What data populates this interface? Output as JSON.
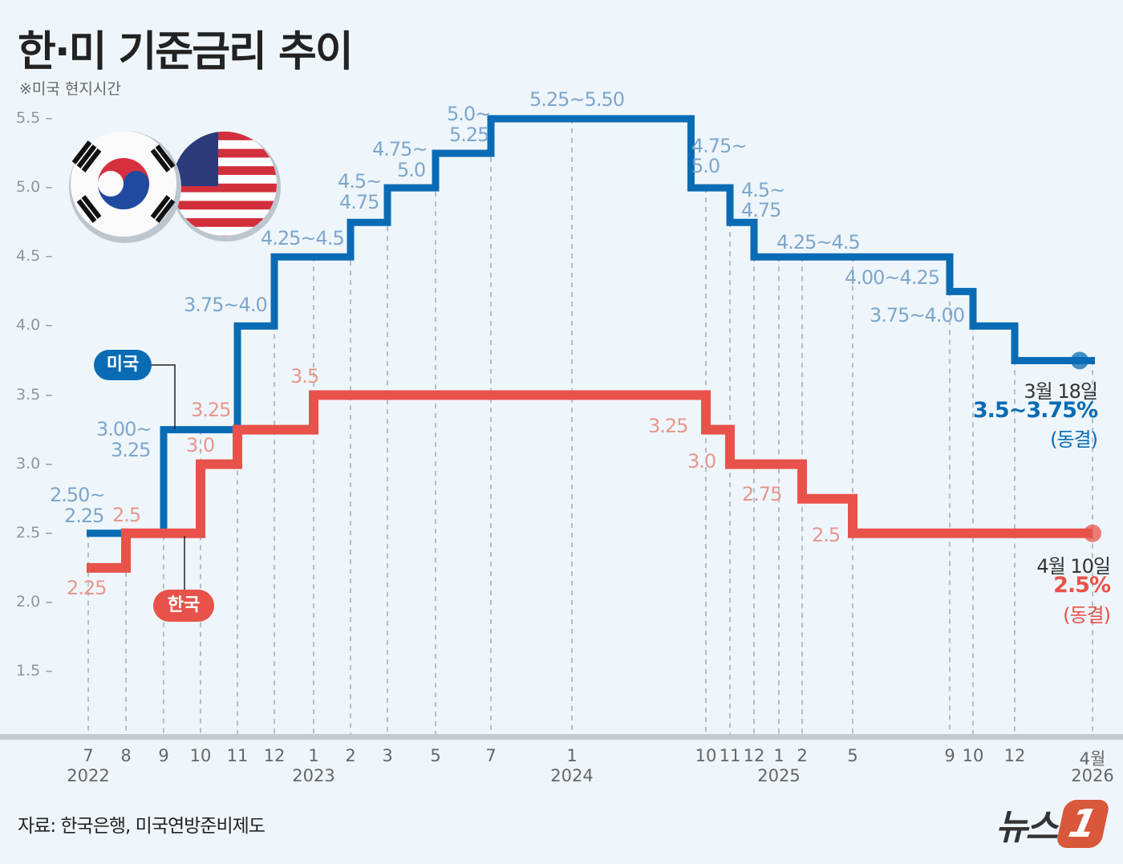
{
  "title": "한·미 기준금리 추이",
  "subtitle": "※미국 현지시간",
  "source": "자료: 한국은행, 미국연방준비제도",
  "logo": {
    "text": "뉴스",
    "mark": "1"
  },
  "colors": {
    "us": "#0a6bb5",
    "us_label": "#7fa6cc",
    "kr": "#e8524a",
    "kr_label": "#e8968c",
    "background": "#eef6fb"
  },
  "icons": [
    "korea-flag-icon",
    "us-flag-icon"
  ],
  "chart_data": {
    "type": "line",
    "step": true,
    "title": "한·미 기준금리 추이",
    "ylim": [
      1.5,
      5.5
    ],
    "yticks": [
      "5.5",
      "5.0",
      "4.5",
      "4.0",
      "3.5",
      "3.0",
      "2.5",
      "2.0",
      "1.5"
    ],
    "grid": "vertical dashed at rate change months",
    "xticks": [
      {
        "date": "2022-07",
        "label": "7",
        "year": "2022"
      },
      {
        "date": "2022-08",
        "label": "8"
      },
      {
        "date": "2022-09",
        "label": "9"
      },
      {
        "date": "2022-10",
        "label": "10"
      },
      {
        "date": "2022-11",
        "label": "11"
      },
      {
        "date": "2022-12",
        "label": "12"
      },
      {
        "date": "2023-01",
        "label": "1",
        "year": "2023"
      },
      {
        "date": "2023-02",
        "label": "2"
      },
      {
        "date": "2023-03",
        "label": "3"
      },
      {
        "date": "2023-05",
        "label": "5"
      },
      {
        "date": "2023-07",
        "label": "7"
      },
      {
        "date": "2024-01",
        "label": "1",
        "year": "2024"
      },
      {
        "date": "2024-10",
        "label": "10"
      },
      {
        "date": "2024-11",
        "label": "11"
      },
      {
        "date": "2024-12",
        "label": "12"
      },
      {
        "date": "2025-01",
        "label": "1",
        "year": "2025"
      },
      {
        "date": "2025-02",
        "label": "2"
      },
      {
        "date": "2025-05",
        "label": "5"
      },
      {
        "date": "2025-09",
        "label": "9"
      },
      {
        "date": "2025-10",
        "label": "10"
      },
      {
        "date": "2025-12",
        "label": "12"
      },
      {
        "date": "2026-04",
        "label": "4월",
        "year": "2026"
      }
    ],
    "series": [
      {
        "name": "미국",
        "color": "#0a6bb5",
        "steps": [
          [
            "2022-07",
            2.5
          ],
          [
            "2022-09",
            3.25
          ],
          [
            "2022-11",
            4.0
          ],
          [
            "2022-12",
            4.5
          ],
          [
            "2023-02",
            4.75
          ],
          [
            "2023-03",
            5.0
          ],
          [
            "2023-05",
            5.25
          ],
          [
            "2023-07",
            5.5
          ],
          [
            "2024-09",
            5.0
          ],
          [
            "2024-11",
            4.75
          ],
          [
            "2024-12",
            4.5
          ],
          [
            "2025-09",
            4.25
          ],
          [
            "2025-10",
            4.0
          ],
          [
            "2025-12",
            3.75
          ]
        ],
        "end": "2026-03-18",
        "labels": [
          "2.50~",
          "2.25",
          "3.00~",
          "3.25",
          "3.75~4.0",
          "4.25~4.5",
          "4.5~",
          "4.75",
          "4.75~",
          "5.0",
          "5.0~",
          "5.25",
          "5.25~5.50",
          "4.75~",
          "5.0",
          "4.5~",
          "4.75",
          "4.25~4.5",
          "4.00~4.25",
          "3.75~4.00"
        ],
        "end_note": {
          "date": "3월 18일",
          "value": "3.5~3.75%",
          "status": "(동결)"
        }
      },
      {
        "name": "한국",
        "color": "#e8524a",
        "steps": [
          [
            "2022-07",
            2.25
          ],
          [
            "2022-08",
            2.5
          ],
          [
            "2022-10",
            3.0
          ],
          [
            "2022-11",
            3.25
          ],
          [
            "2023-01",
            3.5
          ],
          [
            "2024-10",
            3.25
          ],
          [
            "2024-11",
            3.0
          ],
          [
            "2025-02",
            2.75
          ],
          [
            "2025-05",
            2.5
          ]
        ],
        "end": "2026-04-10",
        "labels": [
          "2.25",
          "2.5",
          "3.0",
          "3.25",
          "3.5",
          "3.25",
          "3.0",
          "2.75",
          "2.5"
        ],
        "end_note": {
          "date": "4월 10일",
          "value": "2.5%",
          "status": "(동결)"
        }
      }
    ]
  }
}
